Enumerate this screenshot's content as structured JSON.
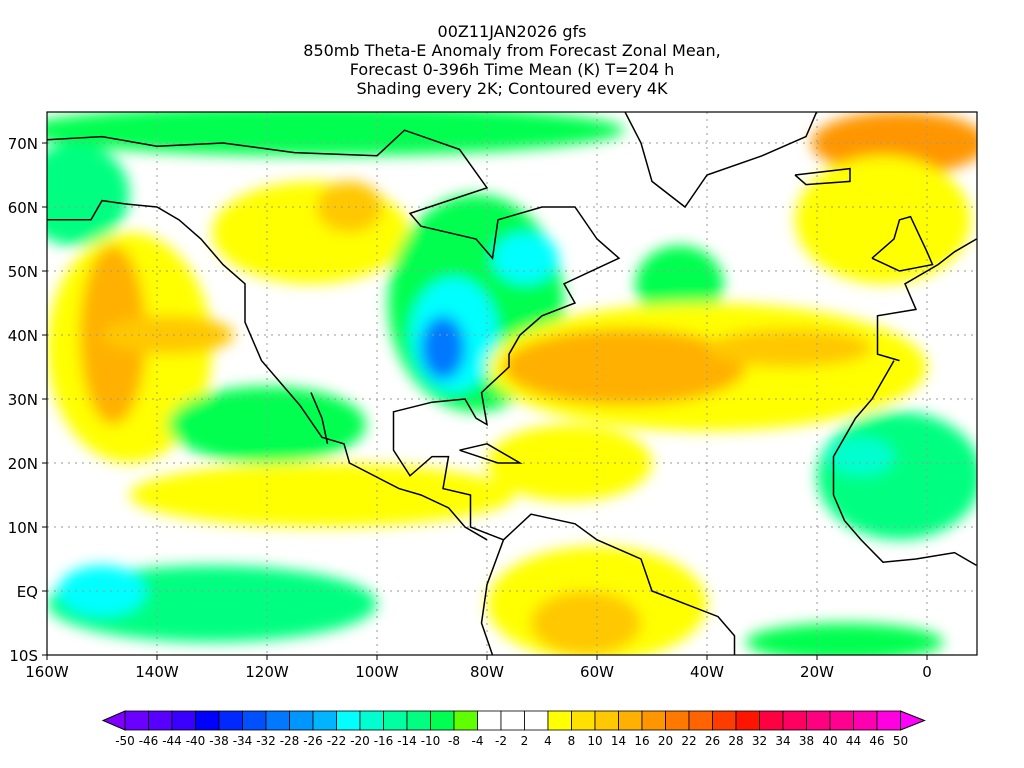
{
  "chart_data": {
    "type": "heatmap",
    "title_lines": [
      "00Z11JAN2026 gfs",
      "850mb Theta-E Anomaly from Forecast Zonal Mean,",
      "Forecast 0-396h Time Mean (K) T=204 h",
      "Shading every 2K; Contoured every 4K"
    ],
    "xlim_lon": [
      -160,
      9
    ],
    "ylim_lat": [
      -10,
      75
    ],
    "grid": true,
    "x_ticks": [
      {
        "lon": -160,
        "label": "160W"
      },
      {
        "lon": -140,
        "label": "140W"
      },
      {
        "lon": -120,
        "label": "120W"
      },
      {
        "lon": -100,
        "label": "100W"
      },
      {
        "lon": -80,
        "label": "80W"
      },
      {
        "lon": -60,
        "label": "60W"
      },
      {
        "lon": -40,
        "label": "40W"
      },
      {
        "lon": -20,
        "label": "20W"
      },
      {
        "lon": 0,
        "label": "0"
      }
    ],
    "y_ticks": [
      {
        "lat": 70,
        "label": "70N"
      },
      {
        "lat": 60,
        "label": "60N"
      },
      {
        "lat": 50,
        "label": "50N"
      },
      {
        "lat": 40,
        "label": "40N"
      },
      {
        "lat": 30,
        "label": "30N"
      },
      {
        "lat": 20,
        "label": "20N"
      },
      {
        "lat": 10,
        "label": "10N"
      },
      {
        "lat": 0,
        "label": "EQ"
      },
      {
        "lat": -10,
        "label": "10S"
      }
    ],
    "colorbar": {
      "labels": [
        "-50",
        "-46",
        "-44",
        "-40",
        "-38",
        "-34",
        "-32",
        "-28",
        "-26",
        "-22",
        "-20",
        "-16",
        "-14",
        "-10",
        "-8",
        "-4",
        "-2",
        "2",
        "4",
        "8",
        "10",
        "14",
        "16",
        "20",
        "22",
        "26",
        "28",
        "32",
        "34",
        "38",
        "40",
        "44",
        "46",
        "50"
      ],
      "colors": [
        "#6a00ff",
        "#5800ff",
        "#3a00ff",
        "#0000ff",
        "#0028ff",
        "#0050ff",
        "#0078ff",
        "#0096ff",
        "#00b4ff",
        "#00ffff",
        "#00ffd0",
        "#00ffa0",
        "#00ff80",
        "#00ff50",
        "#60ff00",
        "#ffffff",
        "#ffffff",
        "#ffffff",
        "#ffff00",
        "#ffe000",
        "#ffc800",
        "#ffb000",
        "#ff9600",
        "#ff7800",
        "#ff6400",
        "#ff3c00",
        "#ff1400",
        "#ff0040",
        "#ff0060",
        "#ff0080",
        "#ff0090",
        "#ff00b0",
        "#ff00e0"
      ],
      "under_color": "#7f00ff",
      "over_color": "#ff00ff"
    },
    "anomaly_features": [
      {
        "name": "arctic-green",
        "lon": -110,
        "lat": 72,
        "rlon": 55,
        "rlat": 4,
        "value": -9
      },
      {
        "name": "alaska-green",
        "lon": -155,
        "lat": 62,
        "rlon": 10,
        "rlat": 8,
        "value": -12
      },
      {
        "name": "pacific-yellow",
        "lon": -145,
        "lat": 38,
        "rlon": 15,
        "rlat": 18,
        "value": 5
      },
      {
        "name": "pacific-plume",
        "lon": -148,
        "lat": 40,
        "rlon": 6,
        "rlat": 14,
        "value": 15
      },
      {
        "name": "pacific-plume-arm",
        "lon": -138,
        "lat": 40,
        "rlon": 12,
        "rlat": 3,
        "value": 12
      },
      {
        "name": "canada-yellow",
        "lon": -112,
        "lat": 56,
        "rlon": 18,
        "rlat": 8,
        "value": 6
      },
      {
        "name": "canada-orange",
        "lon": -105,
        "lat": 60,
        "rlon": 6,
        "rlat": 4,
        "value": 10
      },
      {
        "name": "east-na-green",
        "lon": -82,
        "lat": 45,
        "rlon": 16,
        "rlat": 17,
        "value": -10
      },
      {
        "name": "east-na-cyan",
        "lon": -86,
        "lat": 40,
        "rlon": 8,
        "rlat": 9,
        "value": -22
      },
      {
        "name": "east-na-blue",
        "lon": -88,
        "lat": 38,
        "rlon": 4,
        "rlat": 5,
        "value": -30
      },
      {
        "name": "quebec-cyan",
        "lon": -73,
        "lat": 52,
        "rlon": 6,
        "rlat": 4,
        "value": -22
      },
      {
        "name": "atlantic-green",
        "lon": -45,
        "lat": 48,
        "rlon": 8,
        "rlat": 6,
        "value": -9
      },
      {
        "name": "atlantic-yellow",
        "lon": -40,
        "lat": 35,
        "rlon": 40,
        "rlat": 10,
        "value": 6
      },
      {
        "name": "atlantic-orange",
        "lon": -55,
        "lat": 35,
        "rlon": 22,
        "rlat": 6,
        "value": 15
      },
      {
        "name": "atlantic-orange-e",
        "lon": -25,
        "lat": 38,
        "rlon": 15,
        "rlat": 3,
        "value": 12
      },
      {
        "name": "europe-orange",
        "lon": -5,
        "lat": 70,
        "rlon": 16,
        "rlat": 5,
        "value": 18
      },
      {
        "name": "europe-yellow",
        "lon": -8,
        "lat": 58,
        "rlon": 16,
        "rlat": 10,
        "value": 6
      },
      {
        "name": "east-pac-green",
        "lon": -120,
        "lat": 26,
        "rlon": 18,
        "rlat": 6,
        "value": -10
      },
      {
        "name": "tropic-yellow",
        "lon": -110,
        "lat": 15,
        "rlon": 35,
        "rlat": 5,
        "value": 5
      },
      {
        "name": "africa-green",
        "lon": -5,
        "lat": 18,
        "rlon": 15,
        "rlat": 10,
        "value": -12
      },
      {
        "name": "africa-cyan",
        "lon": -12,
        "lat": 21,
        "rlon": 6,
        "rlat": 3,
        "value": -20
      },
      {
        "name": "trop-pac-green",
        "lon": -130,
        "lat": -2,
        "rlon": 30,
        "rlat": 6,
        "value": -12
      },
      {
        "name": "trop-pac-cyan",
        "lon": -150,
        "lat": 0,
        "rlon": 8,
        "rlat": 4,
        "value": -22
      },
      {
        "name": "s-america-yellow",
        "lon": -60,
        "lat": -2,
        "rlon": 20,
        "rlat": 9,
        "value": 7
      },
      {
        "name": "s-america-orange",
        "lon": -62,
        "lat": -5,
        "rlon": 10,
        "rlat": 5,
        "value": 12
      },
      {
        "name": "s-atl-green",
        "lon": -15,
        "lat": -8,
        "rlon": 18,
        "rlat": 3,
        "value": -9
      },
      {
        "name": "caribbean-yellow",
        "lon": -65,
        "lat": 20,
        "rlon": 15,
        "rlat": 6,
        "value": 6
      }
    ]
  }
}
